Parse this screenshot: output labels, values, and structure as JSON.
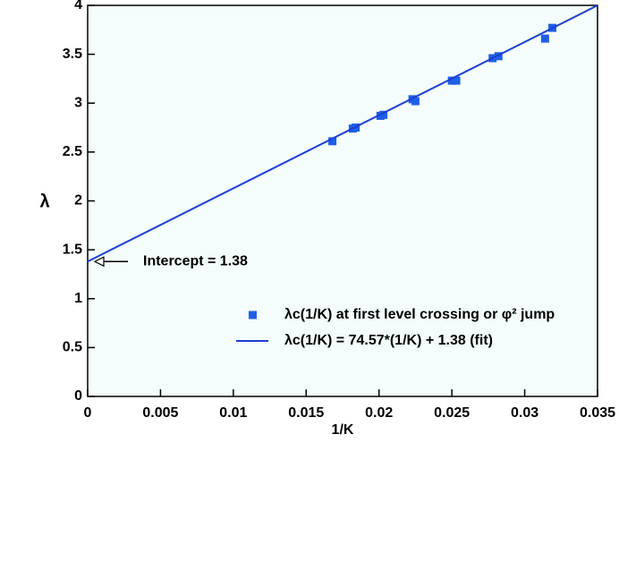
{
  "chart_data": {
    "type": "scatter",
    "x_label": "1/K",
    "y_label": "λ",
    "annotation": "Intercept = 1.38",
    "annotation_point": [
      0,
      1.38
    ],
    "xlim": [
      0,
      0.035
    ],
    "ylim": [
      0,
      4
    ],
    "xticks": [
      0,
      0.005,
      0.01,
      0.015,
      0.02,
      0.025,
      0.03,
      0.035
    ],
    "yticks": [
      0,
      0.5,
      1,
      1.5,
      2,
      2.5,
      3,
      3.5,
      4
    ],
    "background": "#f4fcfc",
    "series": [
      {
        "name": "λc(1/K) at first level crossing or φ² jump",
        "color": "#1f5fe6",
        "mode": "markers",
        "x": [
          0.0168,
          0.0182,
          0.0184,
          0.0201,
          0.0203,
          0.0223,
          0.0225,
          0.025,
          0.0253,
          0.0278,
          0.0282,
          0.0314,
          0.0319
        ],
        "values": [
          2.61,
          2.74,
          2.75,
          2.87,
          2.88,
          3.04,
          3.02,
          3.23,
          3.23,
          3.46,
          3.48,
          3.66,
          3.77
        ]
      },
      {
        "name": "λc(1/K) = 74.57*(1/K) + 1.38 (fit)",
        "color": "#1b3fd4",
        "mode": "line",
        "x": [
          0,
          0.035
        ],
        "values": [
          1.38,
          4.0
        ]
      }
    ]
  }
}
